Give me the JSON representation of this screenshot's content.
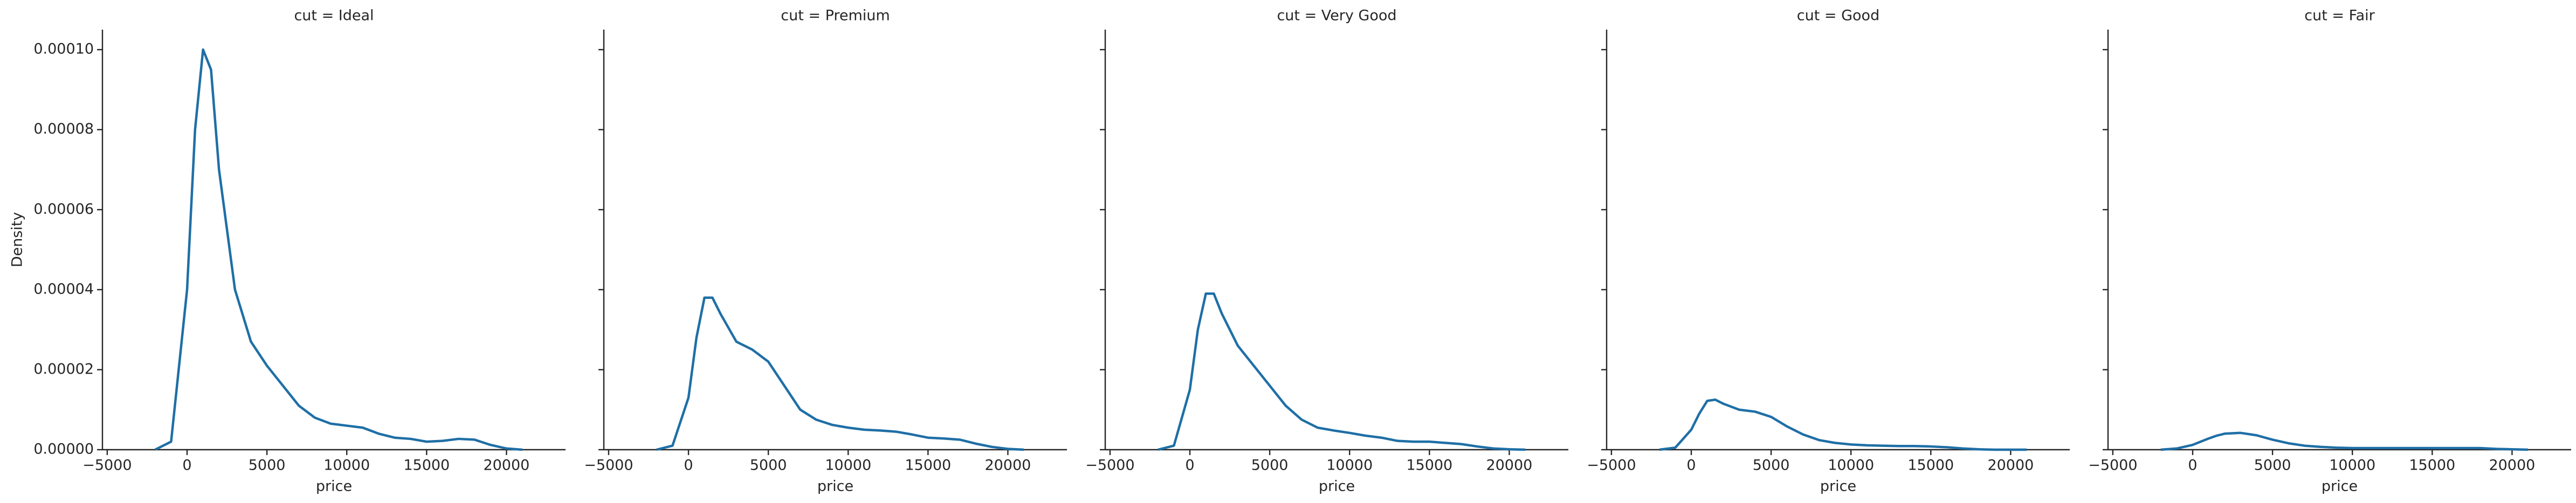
{
  "chart_data": [
    {
      "type": "line",
      "title": "cut = Ideal",
      "xlabel": "price",
      "ylabel": "Density",
      "color": "#1f6fa6",
      "x": [
        -2000,
        -1000,
        0,
        500,
        1000,
        1500,
        2000,
        3000,
        4000,
        5000,
        6000,
        7000,
        8000,
        9000,
        10000,
        11000,
        12000,
        13000,
        14000,
        15000,
        16000,
        17000,
        18000,
        19000,
        20000,
        21000
      ],
      "values": [
        0,
        2e-06,
        4e-05,
        8e-05,
        0.0001,
        9.5e-05,
        7e-05,
        4e-05,
        2.7e-05,
        2.1e-05,
        1.6e-05,
        1.1e-05,
        8e-06,
        6.5e-06,
        6e-06,
        5.5e-06,
        4e-06,
        3e-06,
        2.7e-06,
        2e-06,
        2.2e-06,
        2.7e-06,
        2.5e-06,
        1.2e-06,
        3e-07,
        0
      ],
      "xlim": [
        -5300,
        23700
      ],
      "ylim": [
        0,
        0.000105
      ],
      "xticks": [
        {
          "value": -5000,
          "label": "−5000"
        },
        0,
        5000,
        10000,
        15000,
        20000
      ],
      "yticks": [
        {
          "value": 0,
          "label": "0.00000"
        },
        {
          "value": 2e-05,
          "label": "0.00002"
        },
        {
          "value": 4e-05,
          "label": "0.00004"
        },
        {
          "value": 6e-05,
          "label": "0.00006"
        },
        {
          "value": 8e-05,
          "label": "0.00008"
        },
        {
          "value": 0.0001,
          "label": "0.00010"
        }
      ]
    },
    {
      "type": "line",
      "title": "cut = Premium",
      "xlabel": "price",
      "color": "#1f6fa6",
      "x": [
        -2000,
        -1000,
        0,
        500,
        1000,
        1500,
        2000,
        3000,
        4000,
        5000,
        6000,
        7000,
        8000,
        9000,
        10000,
        11000,
        12000,
        13000,
        14000,
        15000,
        16000,
        17000,
        18000,
        19000,
        20000,
        21000
      ],
      "values": [
        0,
        1e-06,
        1.3e-05,
        2.8e-05,
        3.8e-05,
        3.8e-05,
        3.4e-05,
        2.7e-05,
        2.5e-05,
        2.2e-05,
        1.6e-05,
        1e-05,
        7.5e-06,
        6.2e-06,
        5.5e-06,
        5e-06,
        4.8e-06,
        4.5e-06,
        3.8e-06,
        3e-06,
        2.8e-06,
        2.5e-06,
        1.5e-06,
        7e-07,
        2e-07,
        0
      ],
      "xlim": [
        -5300,
        23700
      ],
      "xticks": [
        {
          "value": -5000,
          "label": "−5000"
        },
        0,
        5000,
        10000,
        15000,
        20000
      ]
    },
    {
      "type": "line",
      "title": "cut = Very Good",
      "xlabel": "price",
      "color": "#1f6fa6",
      "x": [
        -2000,
        -1000,
        0,
        500,
        1000,
        1500,
        2000,
        3000,
        4000,
        5000,
        6000,
        7000,
        8000,
        9000,
        10000,
        11000,
        12000,
        13000,
        14000,
        15000,
        16000,
        17000,
        18000,
        19000,
        20000,
        21000
      ],
      "values": [
        0,
        1e-06,
        1.5e-05,
        3e-05,
        3.9e-05,
        3.9e-05,
        3.4e-05,
        2.6e-05,
        2.1e-05,
        1.6e-05,
        1.1e-05,
        7.5e-06,
        5.5e-06,
        4.8e-06,
        4.2e-06,
        3.5e-06,
        3e-06,
        2.2e-06,
        2e-06,
        2e-06,
        1.7e-06,
        1.4e-06,
        8e-07,
        3e-07,
        1e-07,
        0
      ],
      "xlim": [
        -5300,
        23700
      ],
      "xticks": [
        {
          "value": -5000,
          "label": "−5000"
        },
        0,
        5000,
        10000,
        15000,
        20000
      ]
    },
    {
      "type": "line",
      "title": "cut = Good",
      "xlabel": "price",
      "color": "#1f6fa6",
      "x": [
        -2000,
        -1000,
        0,
        500,
        1000,
        1500,
        2000,
        3000,
        4000,
        5000,
        6000,
        7000,
        8000,
        9000,
        10000,
        11000,
        12000,
        13000,
        14000,
        15000,
        16000,
        17000,
        18000,
        19000,
        20000,
        21000
      ],
      "values": [
        0,
        5e-07,
        5e-06,
        9e-06,
        1.22e-05,
        1.25e-05,
        1.15e-05,
        1e-05,
        9.5e-06,
        8.2e-06,
        5.8e-06,
        3.8e-06,
        2.4e-06,
        1.7e-06,
        1.3e-06,
        1.1e-06,
        1e-06,
        9e-07,
        9e-07,
        8e-07,
        6e-07,
        3e-07,
        1e-07,
        0,
        0,
        0
      ],
      "xlim": [
        -5300,
        23700
      ],
      "xticks": [
        {
          "value": -5000,
          "label": "−5000"
        },
        0,
        5000,
        10000,
        15000,
        20000
      ]
    },
    {
      "type": "line",
      "title": "cut = Fair",
      "xlabel": "price",
      "color": "#1f6fa6",
      "x": [
        -2000,
        -1000,
        0,
        500,
        1000,
        1500,
        2000,
        3000,
        4000,
        5000,
        6000,
        7000,
        8000,
        9000,
        10000,
        11000,
        12000,
        13000,
        14000,
        15000,
        16000,
        17000,
        18000,
        19000,
        20000,
        21000
      ],
      "values": [
        0,
        3e-07,
        1.2e-06,
        2e-06,
        2.8e-06,
        3.5e-06,
        4e-06,
        4.2e-06,
        3.6e-06,
        2.5e-06,
        1.6e-06,
        1e-06,
        7e-07,
        5e-07,
        4e-07,
        4e-07,
        4e-07,
        4e-07,
        4e-07,
        4e-07,
        4e-07,
        4e-07,
        4e-07,
        2e-07,
        1e-07,
        0
      ],
      "xlim": [
        -5300,
        23700
      ],
      "xticks": [
        {
          "value": -5000,
          "label": "−5000"
        },
        0,
        5000,
        10000,
        15000,
        20000
      ]
    }
  ]
}
